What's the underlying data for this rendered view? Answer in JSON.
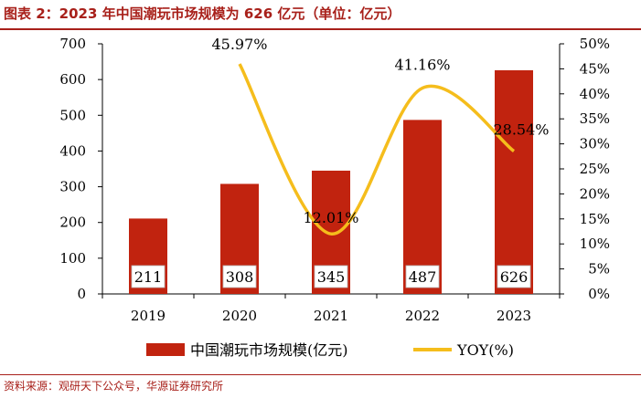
{
  "page": {
    "title": "图表 2：2023 年中国潮玩市场规模为 626 亿元（单位：亿元）",
    "source": "资料来源：观研天下公众号，华源证券研究所"
  },
  "colors": {
    "bar": "#c1230f",
    "line": "#f5bd1c",
    "title": "#a8201a"
  },
  "chart_data": {
    "type": "bar",
    "categories": [
      "2019",
      "2020",
      "2021",
      "2022",
      "2023"
    ],
    "series": [
      {
        "name": "中国潮玩市场规模(亿元)",
        "type": "bar",
        "axis": "left",
        "values": [
          211,
          308,
          345,
          487,
          626
        ],
        "labels": [
          "211",
          "308",
          "345",
          "487",
          "626"
        ]
      },
      {
        "name": "YOY(%)",
        "type": "line",
        "axis": "right",
        "values": [
          null,
          45.97,
          12.01,
          41.16,
          28.54
        ],
        "labels": [
          "",
          "45.97%",
          "12.01%",
          "41.16%",
          "28.54%"
        ]
      }
    ],
    "y_left": {
      "ylim": [
        0,
        700
      ],
      "ticks": [
        "0",
        "100",
        "200",
        "300",
        "400",
        "500",
        "600",
        "700"
      ]
    },
    "y_right": {
      "ylim": [
        0,
        50
      ],
      "ticks": [
        "0%",
        "5%",
        "10%",
        "15%",
        "20%",
        "25%",
        "30%",
        "35%",
        "40%",
        "45%",
        "50%"
      ]
    },
    "legend_position": "bottom",
    "grid": false
  }
}
